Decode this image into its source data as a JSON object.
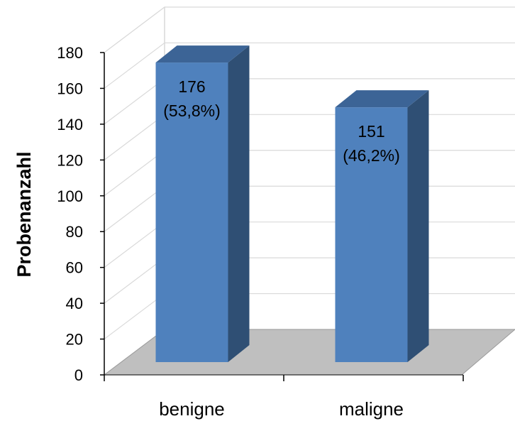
{
  "chart_data": {
    "type": "bar",
    "style": "3d-column",
    "categories": [
      "benigne",
      "maligne"
    ],
    "values": [
      176,
      151
    ],
    "data_labels": [
      [
        "176",
        "(53,8%)"
      ],
      [
        "151",
        "(46,2%)"
      ]
    ],
    "title": "",
    "xlabel": "",
    "ylabel": "Probenanzahl",
    "ylim": [
      0,
      180
    ],
    "yticks": [
      0,
      20,
      40,
      60,
      80,
      100,
      120,
      140,
      160,
      180
    ],
    "grid": true,
    "legend": "none",
    "colors": {
      "bar_front": "#4F81BD",
      "bar_side": "#2F4F74",
      "bar_top": "#3C6496",
      "floor": "#BFBFBF",
      "gridline": "#D9D9D9",
      "axis": "#000000"
    }
  }
}
